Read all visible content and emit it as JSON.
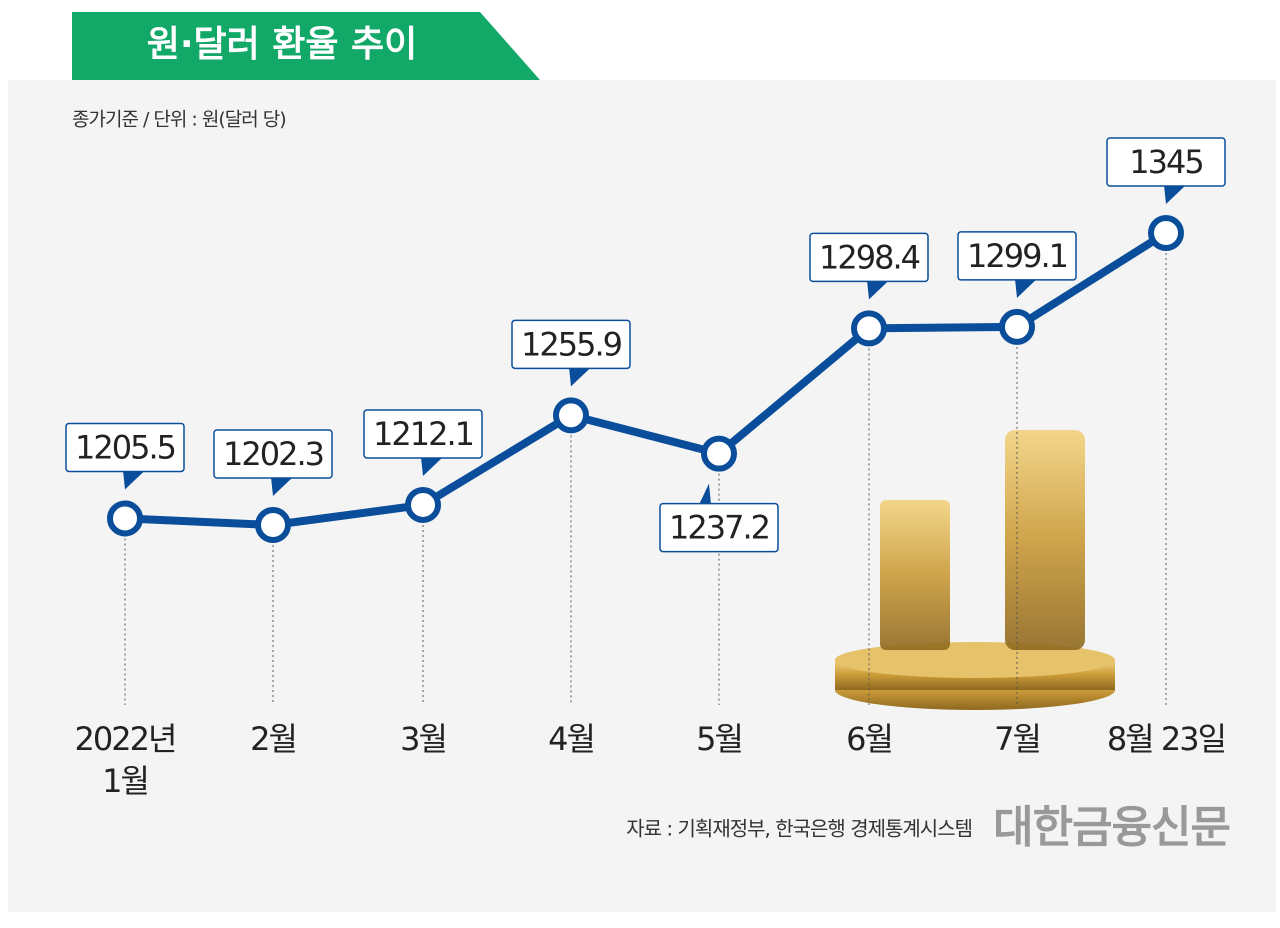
{
  "chart_data": {
    "type": "line",
    "title": "원·달러 환율 추이",
    "subtitle": "종가기준 / 단위 : 원(달러 당)",
    "categories": [
      "2022년\n1월",
      "2월",
      "3월",
      "4월",
      "5월",
      "6월",
      "7월",
      "8월 23일"
    ],
    "values": [
      1205.5,
      1202.3,
      1212.1,
      1255.9,
      1237.2,
      1298.4,
      1299.1,
      1345
    ],
    "color": "#0a4e9b",
    "source": "자료 : 기획재정부, 한국은행 경제통계시스템",
    "logo": "대한금융신문"
  }
}
